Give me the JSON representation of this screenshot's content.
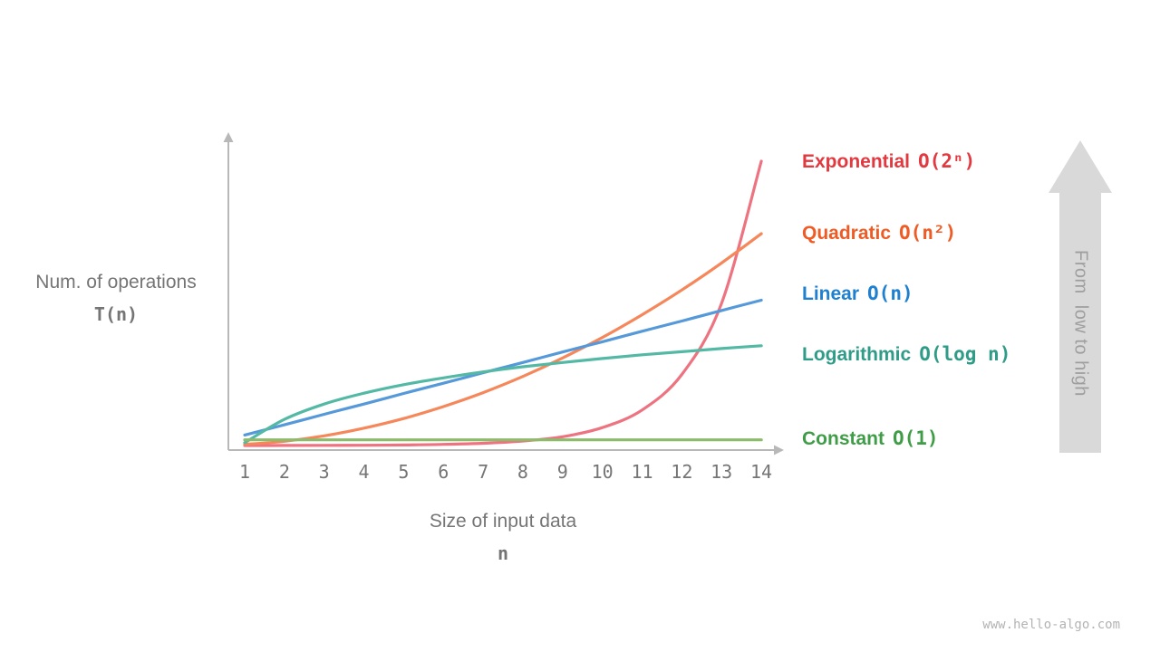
{
  "page": {
    "background": "#ffffff",
    "watermark": "www.hello-algo.com"
  },
  "axis_arrow": {
    "label": "From  low to high",
    "fill": "#d9d9d9",
    "text_color": "#9e9e9e"
  },
  "chart_data": {
    "type": "line",
    "x": [
      1,
      2,
      3,
      4,
      5,
      6,
      7,
      8,
      9,
      10,
      11,
      12,
      13,
      14
    ],
    "xlabel": "Size of input data",
    "xlabel_symbol": "n",
    "ylabel": "Num. of operations",
    "ylabel_symbol": "T(n)",
    "xlim": [
      0.5,
      14.5
    ],
    "ylim": [
      0,
      1
    ],
    "grid": false,
    "legend_position": "right",
    "axis_color": "#b8b8b8",
    "tick_color": "#757575",
    "series": [
      {
        "name": "Exponential",
        "formula": "O(2ⁿ)",
        "color": "#ee7380",
        "label_color": "#e2383f",
        "values": [
          0.0001,
          0.0002,
          0.0005,
          0.001,
          0.002,
          0.004,
          0.008,
          0.016,
          0.031,
          0.063,
          0.125,
          0.25,
          0.5,
          1.0
        ]
      },
      {
        "name": "Quadratic",
        "formula": "O(n²)",
        "color": "#f5875a",
        "label_color": "#ef5b24",
        "values": [
          0.004,
          0.015,
          0.034,
          0.061,
          0.095,
          0.137,
          0.186,
          0.243,
          0.308,
          0.38,
          0.46,
          0.547,
          0.642,
          0.745
        ]
      },
      {
        "name": "Linear",
        "formula": "O(n)",
        "color": "#5599da",
        "label_color": "#2080d0",
        "values": [
          0.037,
          0.073,
          0.11,
          0.146,
          0.183,
          0.219,
          0.256,
          0.292,
          0.329,
          0.365,
          0.402,
          0.438,
          0.475,
          0.511
        ]
      },
      {
        "name": "Logarithmic",
        "formula": "O(log n)",
        "color": "#53b9a4",
        "label_color": "#2f9c87",
        "values": [
          0.01,
          0.092,
          0.146,
          0.184,
          0.214,
          0.238,
          0.259,
          0.277,
          0.292,
          0.306,
          0.319,
          0.33,
          0.341,
          0.351
        ]
      },
      {
        "name": "Constant",
        "formula": "O(1)",
        "color": "#8cbb6c",
        "label_color": "#3f9d47",
        "values": [
          0.02,
          0.02,
          0.02,
          0.02,
          0.02,
          0.02,
          0.02,
          0.02,
          0.02,
          0.02,
          0.02,
          0.02,
          0.02,
          0.02
        ]
      }
    ]
  }
}
